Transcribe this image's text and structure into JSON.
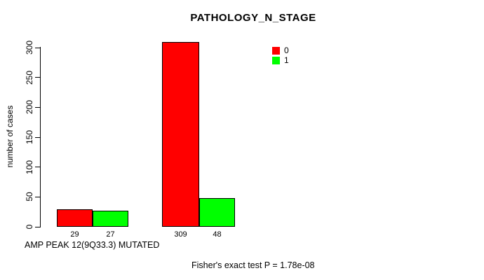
{
  "chart_data": {
    "type": "bar",
    "title": "PATHOLOGY_N_STAGE",
    "ylabel": "number of cases",
    "xlabel": "AMP PEAK 12(9Q33.3) MUTATED",
    "annotation": "Fisher's exact test P = 1.78e-08",
    "ylim": [
      0,
      300
    ],
    "yticks": [
      0,
      50,
      100,
      150,
      200,
      250,
      300
    ],
    "grid": false,
    "background_color": "#ffffff",
    "bar_border_color": "#000000",
    "legend": {
      "position": "top-right",
      "entries": [
        {
          "label": "0",
          "color": "#ff0000"
        },
        {
          "label": "1",
          "color": "#00ff00"
        }
      ]
    },
    "series": [
      {
        "name": "0",
        "color": "#ff0000",
        "values": [
          29,
          309
        ]
      },
      {
        "name": "1",
        "color": "#00ff00",
        "values": [
          27,
          48
        ]
      }
    ],
    "groups": [
      {
        "bars": [
          {
            "series": "0",
            "value": 29,
            "label": "29"
          },
          {
            "series": "1",
            "value": 27,
            "label": "27"
          }
        ]
      },
      {
        "bars": [
          {
            "series": "0",
            "value": 309,
            "label": "309"
          },
          {
            "series": "1",
            "value": 48,
            "label": "48"
          }
        ]
      }
    ]
  }
}
